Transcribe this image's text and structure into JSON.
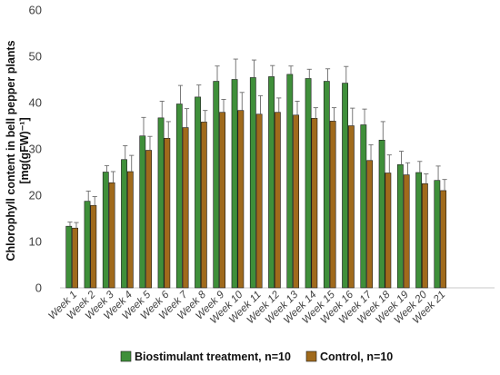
{
  "chart_data": {
    "type": "bar",
    "categories": [
      "Week 1",
      "Week 2",
      "Week 3",
      "Week 4",
      "Week 5",
      "Week 6",
      "Week 7",
      "Week 8",
      "Week 9",
      "Week 10",
      "Week 11",
      "Week 12",
      "Week 13",
      "Week 14",
      "Week 15",
      "Week 16",
      "Week 17",
      "Week 18",
      "Week 19",
      "Week 20",
      "Week 21"
    ],
    "series": [
      {
        "name": "Biostimulant treatment, n=10",
        "color": "#3f8f3a",
        "values": [
          13.3,
          18.7,
          25.0,
          27.7,
          32.8,
          36.7,
          39.7,
          41.2,
          44.6,
          45.0,
          45.4,
          45.6,
          46.1,
          45.2,
          44.6,
          44.2,
          35.2,
          31.9,
          26.6,
          24.9,
          23.2
        ],
        "error": [
          0.9,
          2.2,
          1.4,
          3.0,
          4.0,
          3.6,
          4.0,
          2.6,
          3.3,
          4.4,
          3.8,
          2.4,
          1.8,
          2.0,
          2.7,
          3.6,
          3.4,
          4.0,
          2.9,
          2.4,
          3.1
        ]
      },
      {
        "name": "Control, n=10",
        "color": "#a06a1c",
        "values": [
          12.9,
          17.8,
          22.7,
          25.1,
          29.7,
          32.3,
          34.6,
          35.8,
          37.9,
          38.3,
          37.5,
          37.9,
          37.3,
          36.6,
          36.0,
          35.0,
          27.5,
          24.8,
          24.4,
          22.5,
          21.0
        ],
        "error": [
          1.2,
          1.9,
          2.4,
          3.5,
          3.0,
          3.6,
          4.1,
          2.5,
          2.8,
          3.9,
          4.0,
          3.1,
          3.0,
          2.3,
          2.9,
          3.8,
          3.4,
          3.9,
          2.6,
          2.1,
          2.4
        ]
      }
    ],
    "ylabel": "Chlorophyll content in bell pepper plants [mg(gFW)⁻¹]",
    "yticks": [
      "0",
      "10",
      "20",
      "30",
      "40",
      "50",
      "60"
    ],
    "ylim": [
      0,
      60
    ],
    "grid": false,
    "legend_position": "bottom"
  }
}
